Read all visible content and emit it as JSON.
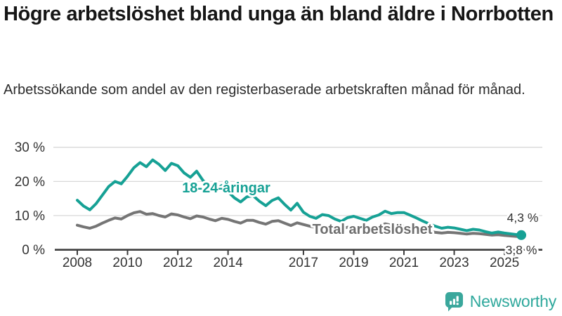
{
  "header": {
    "title": "Högre arbetslöshet bland unga än bland äldre i Norrbotten",
    "subtitle": "Arbetssökande som andel av den registerbaserade arbetskraften månad för månad."
  },
  "footer": {
    "brand": "Newsworthy",
    "brand_color": "#3aa79c"
  },
  "chart_data": {
    "type": "line",
    "title": "Högre arbetslöshet bland unga än bland äldre i Norrbotten",
    "subtitle": "Arbetssökande som andel av den registerbaserade arbetskraften månad för månad.",
    "unit": "%",
    "grid": "horizontal",
    "legend_position": "inline-labels",
    "x_range": [
      2007.7,
      2025.9
    ],
    "y_range": [
      0,
      30
    ],
    "x_ticks": [
      2008,
      2010,
      2012,
      2014,
      2017,
      2019,
      2021,
      2023,
      2025
    ],
    "y_ticks": [
      {
        "v": 0,
        "label": "0 %"
      },
      {
        "v": 10,
        "label": "10 %"
      },
      {
        "v": 20,
        "label": "20 %"
      },
      {
        "v": 30,
        "label": "30 %"
      }
    ],
    "series": [
      {
        "name": "18-24-åringar",
        "color": "#16a195",
        "end_label": "4,3 %",
        "end_value": 4.3,
        "end_dot": true,
        "points": [
          [
            2008.0,
            14.5
          ],
          [
            2008.25,
            12.8
          ],
          [
            2008.5,
            11.7
          ],
          [
            2008.75,
            13.5
          ],
          [
            2009.0,
            16.0
          ],
          [
            2009.25,
            18.5
          ],
          [
            2009.5,
            20.0
          ],
          [
            2009.75,
            19.3
          ],
          [
            2010.0,
            21.5
          ],
          [
            2010.25,
            24.0
          ],
          [
            2010.5,
            25.5
          ],
          [
            2010.75,
            24.3
          ],
          [
            2011.0,
            26.3
          ],
          [
            2011.25,
            25.0
          ],
          [
            2011.5,
            23.2
          ],
          [
            2011.75,
            25.3
          ],
          [
            2012.0,
            24.6
          ],
          [
            2012.25,
            22.5
          ],
          [
            2012.5,
            21.2
          ],
          [
            2012.75,
            23.0
          ],
          [
            2013.0,
            20.3
          ],
          [
            2013.25,
            18.8
          ],
          [
            2013.5,
            17.5
          ],
          [
            2013.75,
            18.8
          ],
          [
            2014.0,
            17.0
          ],
          [
            2014.25,
            15.2
          ],
          [
            2014.5,
            14.0
          ],
          [
            2014.75,
            15.5
          ],
          [
            2015.0,
            15.8
          ],
          [
            2015.25,
            14.2
          ],
          [
            2015.5,
            12.9
          ],
          [
            2015.75,
            14.4
          ],
          [
            2016.0,
            15.2
          ],
          [
            2016.25,
            13.3
          ],
          [
            2016.5,
            11.6
          ],
          [
            2016.75,
            13.6
          ],
          [
            2017.0,
            11.0
          ],
          [
            2017.25,
            9.8
          ],
          [
            2017.5,
            9.2
          ],
          [
            2017.75,
            10.3
          ],
          [
            2018.0,
            10.0
          ],
          [
            2018.25,
            9.0
          ],
          [
            2018.5,
            8.3
          ],
          [
            2018.75,
            9.4
          ],
          [
            2019.0,
            9.8
          ],
          [
            2019.25,
            9.2
          ],
          [
            2019.5,
            8.6
          ],
          [
            2019.75,
            9.6
          ],
          [
            2020.0,
            10.2
          ],
          [
            2020.25,
            11.3
          ],
          [
            2020.5,
            10.6
          ],
          [
            2020.75,
            10.9
          ],
          [
            2021.0,
            10.9
          ],
          [
            2021.25,
            10.1
          ],
          [
            2021.5,
            9.3
          ],
          [
            2021.75,
            8.4
          ],
          [
            2022.0,
            7.6
          ],
          [
            2022.25,
            6.9
          ],
          [
            2022.5,
            6.3
          ],
          [
            2022.75,
            6.6
          ],
          [
            2023.0,
            6.4
          ],
          [
            2023.25,
            6.0
          ],
          [
            2023.5,
            5.6
          ],
          [
            2023.75,
            6.0
          ],
          [
            2024.0,
            5.8
          ],
          [
            2024.25,
            5.3
          ],
          [
            2024.5,
            4.9
          ],
          [
            2024.75,
            5.2
          ],
          [
            2025.0,
            4.9
          ],
          [
            2025.33,
            4.6
          ],
          [
            2025.67,
            4.3
          ]
        ]
      },
      {
        "name": "Total arbetslöshet",
        "color": "#757575",
        "end_label": "3,8 %",
        "end_value": 3.8,
        "end_dot": false,
        "points": [
          [
            2008.0,
            7.2
          ],
          [
            2008.25,
            6.7
          ],
          [
            2008.5,
            6.3
          ],
          [
            2008.75,
            6.9
          ],
          [
            2009.0,
            7.8
          ],
          [
            2009.25,
            8.6
          ],
          [
            2009.5,
            9.3
          ],
          [
            2009.75,
            9.0
          ],
          [
            2010.0,
            10.0
          ],
          [
            2010.25,
            10.8
          ],
          [
            2010.5,
            11.2
          ],
          [
            2010.75,
            10.4
          ],
          [
            2011.0,
            10.6
          ],
          [
            2011.25,
            10.0
          ],
          [
            2011.5,
            9.6
          ],
          [
            2011.75,
            10.5
          ],
          [
            2012.0,
            10.2
          ],
          [
            2012.25,
            9.6
          ],
          [
            2012.5,
            9.1
          ],
          [
            2012.75,
            9.9
          ],
          [
            2013.0,
            9.6
          ],
          [
            2013.25,
            9.0
          ],
          [
            2013.5,
            8.5
          ],
          [
            2013.75,
            9.2
          ],
          [
            2014.0,
            8.9
          ],
          [
            2014.25,
            8.3
          ],
          [
            2014.5,
            7.8
          ],
          [
            2014.75,
            8.6
          ],
          [
            2015.0,
            8.6
          ],
          [
            2015.25,
            8.0
          ],
          [
            2015.5,
            7.5
          ],
          [
            2015.75,
            8.3
          ],
          [
            2016.0,
            8.5
          ],
          [
            2016.25,
            7.8
          ],
          [
            2016.5,
            7.1
          ],
          [
            2016.75,
            7.9
          ],
          [
            2017.0,
            7.4
          ],
          [
            2017.25,
            6.9
          ],
          [
            2017.5,
            6.5
          ],
          [
            2017.75,
            7.1
          ],
          [
            2018.0,
            6.8
          ],
          [
            2018.25,
            6.3
          ],
          [
            2018.5,
            6.0
          ],
          [
            2018.75,
            6.6
          ],
          [
            2019.0,
            6.6
          ],
          [
            2019.25,
            6.2
          ],
          [
            2019.5,
            5.9
          ],
          [
            2019.75,
            6.4
          ],
          [
            2020.0,
            6.8
          ],
          [
            2020.25,
            7.6
          ],
          [
            2020.5,
            7.2
          ],
          [
            2020.75,
            7.0
          ],
          [
            2021.0,
            6.9
          ],
          [
            2021.25,
            6.4
          ],
          [
            2021.5,
            5.9
          ],
          [
            2021.75,
            5.6
          ],
          [
            2022.0,
            5.4
          ],
          [
            2022.25,
            5.1
          ],
          [
            2022.5,
            4.9
          ],
          [
            2022.75,
            5.1
          ],
          [
            2023.0,
            5.0
          ],
          [
            2023.25,
            4.8
          ],
          [
            2023.5,
            4.6
          ],
          [
            2023.75,
            4.8
          ],
          [
            2024.0,
            4.7
          ],
          [
            2024.25,
            4.5
          ],
          [
            2024.5,
            4.3
          ],
          [
            2024.75,
            4.4
          ],
          [
            2025.0,
            4.2
          ],
          [
            2025.33,
            4.0
          ],
          [
            2025.67,
            3.8
          ]
        ]
      }
    ]
  }
}
